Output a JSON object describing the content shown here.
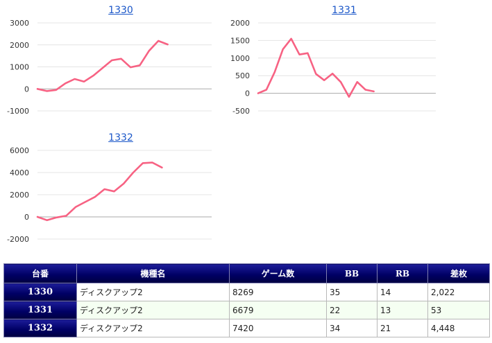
{
  "chart_data": [
    {
      "type": "line",
      "title": "1330",
      "ylim": [
        -1000,
        3000
      ],
      "yticks": [
        -1000,
        0,
        1000,
        2000,
        3000
      ],
      "grid": true,
      "line_color": "#f76283",
      "series": [
        {
          "values": [
            0,
            -100,
            -50,
            250,
            450,
            330,
            600,
            950,
            1300,
            1370,
            980,
            1070,
            1730,
            2180,
            2022
          ]
        }
      ]
    },
    {
      "type": "line",
      "title": "1331",
      "ylim": [
        -500,
        2000
      ],
      "yticks": [
        -500,
        0,
        500,
        1000,
        1500,
        2000
      ],
      "grid": true,
      "line_color": "#f76283",
      "series": [
        {
          "values": [
            0,
            100,
            600,
            1250,
            1550,
            1100,
            1140,
            550,
            370,
            560,
            320,
            -100,
            320,
            100,
            53
          ]
        }
      ]
    },
    {
      "type": "line",
      "title": "1332",
      "ylim": [
        -2000,
        6000
      ],
      "yticks": [
        -2000,
        0,
        2000,
        4000,
        6000
      ],
      "grid": true,
      "line_color": "#f76283",
      "series": [
        {
          "values": [
            0,
            -300,
            -50,
            100,
            900,
            1350,
            1800,
            2500,
            2300,
            3000,
            4000,
            4850,
            4900,
            4448
          ]
        }
      ]
    }
  ],
  "table": {
    "headers": [
      "台番",
      "機種名",
      "ゲーム数",
      "BB",
      "RB",
      "差枚"
    ],
    "rows": [
      [
        "1330",
        "ディスクアップ2",
        "8269",
        "35",
        "14",
        "2,022"
      ],
      [
        "1331",
        "ディスクアップ2",
        "6679",
        "22",
        "13",
        "53"
      ],
      [
        "1332",
        "ディスクアップ2",
        "7420",
        "34",
        "21",
        "4,448"
      ]
    ]
  }
}
